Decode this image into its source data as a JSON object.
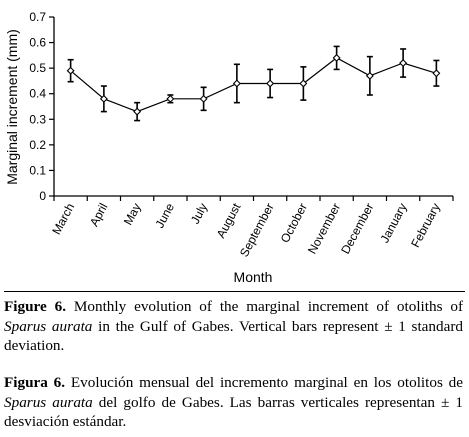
{
  "chart_data": {
    "type": "line",
    "ylabel": "Marginal increment (mm)",
    "xlabel": "Month",
    "ylim": [
      0,
      0.7
    ],
    "yticks": [
      0,
      0.1,
      0.2,
      0.3,
      0.4,
      0.5,
      0.6,
      0.7
    ],
    "ytick_labels": [
      "0",
      "0.1",
      "0.2",
      "0.3",
      "0.4",
      "0.5",
      "0.6",
      "0.7"
    ],
    "grid": false,
    "categories": [
      "March",
      "April",
      "May",
      "June",
      "July",
      "August",
      "September",
      "October",
      "November",
      "December",
      "January",
      "February"
    ],
    "values": [
      0.49,
      0.38,
      0.33,
      0.38,
      0.38,
      0.44,
      0.44,
      0.44,
      0.54,
      0.47,
      0.52,
      0.48
    ],
    "error": [
      0.043,
      0.05,
      0.035,
      0.015,
      0.045,
      0.075,
      0.055,
      0.065,
      0.045,
      0.075,
      0.055,
      0.05
    ],
    "line_color": "#000000",
    "marker": "open-diamond"
  },
  "caption_en": {
    "label": "Figure 6.",
    "text_before": "Monthly evolution of the marginal increment of otoliths of",
    "species": "Sparus aurata",
    "text_after": "in the Gulf of Gabes. Vertical bars represent ± 1 standard deviation."
  },
  "caption_es": {
    "label": "Figura 6.",
    "text_before": "Evolución mensual del incremento marginal en los otolitos de",
    "species": "Sparus aurata",
    "text_after": "del golfo de Gabes. Las barras verticales representan ± 1 desviación estándar."
  }
}
